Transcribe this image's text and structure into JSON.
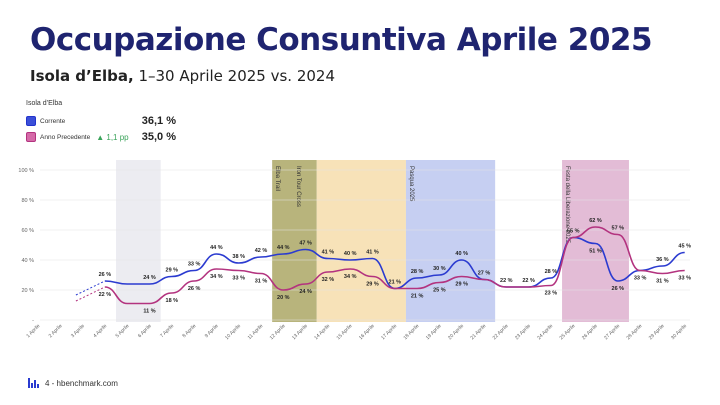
{
  "header": {
    "title": "Occupazione Consuntiva Aprile 2025",
    "subtitle_bold": "Isola d’Elba,",
    "subtitle_rest": "1–30 Aprile 2025 vs. 2024"
  },
  "legend": {
    "title": "Isola d’Elba",
    "current_label": "Corrente",
    "current_value": "36,1 %",
    "previous_label": "Anno Precedente",
    "delta": "▲ 1,1 pp",
    "previous_value": "35,0 %"
  },
  "footer": {
    "text": "4 - hbenchmark.com"
  },
  "colors": {
    "current": "#2b3bd0",
    "previous": "#b3337f",
    "title": "#1f2470"
  },
  "chart_data": {
    "type": "line",
    "x": [
      "1 Aprile",
      "2 Aprile",
      "3 Aprile",
      "4 Aprile",
      "5 Aprile",
      "6 Aprile",
      "7 Aprile",
      "8 Aprile",
      "9 Aprile",
      "10 Aprile",
      "11 Aprile",
      "12 Aprile",
      "13 Aprile",
      "14 Aprile",
      "15 Aprile",
      "16 Aprile",
      "17 Aprile",
      "18 Aprile",
      "19 Aprile",
      "20 Aprile",
      "21 Aprile",
      "22 Aprile",
      "23 Aprile",
      "24 Aprile",
      "25 Aprile",
      "26 Aprile",
      "27 Aprile",
      "28 Aprile",
      "29 Aprile",
      "30 Aprile"
    ],
    "ylim": [
      0,
      100
    ],
    "yticks": [
      "-",
      "20 %",
      "40 %",
      "60 %",
      "80 %",
      "100 %"
    ],
    "series": [
      {
        "name": "Corrente",
        "values": [
          null,
          null,
          null,
          26,
          24,
          24,
          29,
          33,
          44,
          38,
          42,
          44,
          47,
          41,
          40,
          41,
          21,
          28,
          30,
          40,
          27,
          22,
          22,
          28,
          55,
          51,
          26,
          33,
          36,
          45
        ],
        "labels": [
          null,
          null,
          null,
          "26 %",
          "",
          "24 %",
          "29 %",
          "33 %",
          "44 %",
          "38 %",
          "42 %",
          "44 %",
          "47 %",
          "41 %",
          "40 %",
          "41 %",
          "21 %",
          "28 %",
          "30 %",
          "40 %",
          "27 %",
          "22 %",
          "22 %",
          "28 %",
          "55 %",
          "51 %",
          "26 %",
          "",
          "36 %",
          "45 %"
        ]
      },
      {
        "name": "Anno Precedente",
        "values": [
          null,
          null,
          null,
          22,
          11,
          11,
          18,
          26,
          34,
          33,
          31,
          20,
          24,
          32,
          34,
          29,
          21,
          21,
          25,
          29,
          27,
          22,
          22,
          23,
          55,
          62,
          57,
          33,
          31,
          33
        ],
        "labels": [
          null,
          null,
          null,
          "22 %",
          "",
          "11 %",
          "18 %",
          "26 %",
          "34 %",
          "33 %",
          "31 %",
          "20 %",
          "24 %",
          "32 %",
          "34 %",
          "29 %",
          "",
          "21 %",
          "25 %",
          "29 %",
          "",
          "",
          "",
          "23 %",
          "",
          "62 %",
          "57 %",
          "33 %",
          "31 %",
          "33 %"
        ]
      }
    ],
    "bands": [
      {
        "from": 5,
        "to": 6,
        "color": "#ececf1",
        "label": ""
      },
      {
        "from": 12,
        "to": 13,
        "color": "#b8b47c",
        "label": "Elba Trail"
      },
      {
        "from": 12,
        "to": 13,
        "color": "#b8b47c",
        "label": "Iron Tour Cross"
      },
      {
        "from": 14,
        "to": 17,
        "color": "#f7e2b8",
        "label": ""
      },
      {
        "from": 18,
        "to": 21,
        "color": "#c6cff2",
        "label": "Pasqua 2025"
      },
      {
        "from": 25,
        "to": 27,
        "color": "#e3bcd6",
        "label": "Festa della Liberazione 2025"
      }
    ]
  }
}
